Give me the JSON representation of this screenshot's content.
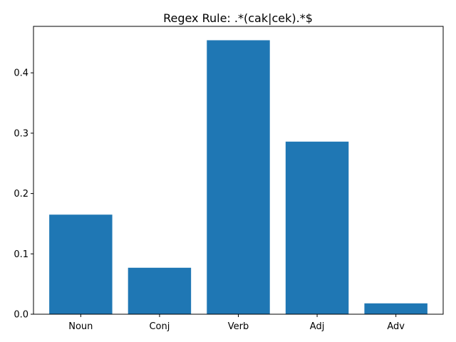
{
  "chart_data": {
    "type": "bar",
    "title": "Regex Rule: .*(cak|cek).*$",
    "xlabel": "",
    "ylabel": "",
    "categories": [
      "Noun",
      "Conj",
      "Verb",
      "Adj",
      "Adv"
    ],
    "values": [
      0.165,
      0.077,
      0.454,
      0.286,
      0.018
    ],
    "ylim": [
      0,
      0.477
    ],
    "yticks": [
      0.0,
      0.1,
      0.2,
      0.3,
      0.4
    ],
    "ytick_labels": [
      "0.0",
      "0.1",
      "0.2",
      "0.3",
      "0.4"
    ],
    "bar_color": "#1f77b4",
    "grid": false,
    "legend": "none"
  }
}
